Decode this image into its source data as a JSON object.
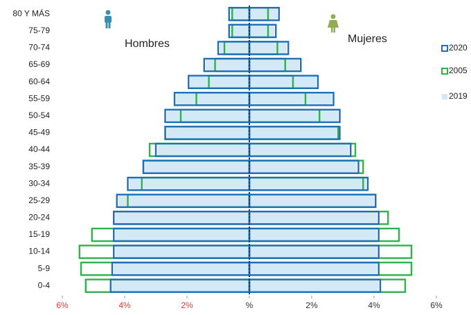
{
  "chart_data": {
    "type": "pyramid",
    "men_label": "Hombres",
    "women_label": "Mujeres",
    "categories": [
      "80 Y MÁS",
      "75-79",
      "70-74",
      "65-69",
      "60-64",
      "55-59",
      "50-54",
      "45-49",
      "40-44",
      "35-39",
      "30-34",
      "25-29",
      "20-24",
      "15-19",
      "10-14",
      "5-9",
      "0-4"
    ],
    "series": [
      {
        "name": "2020",
        "color": "#1f6fb8",
        "style": "outline",
        "men": [
          -0.65,
          -0.65,
          -1.0,
          -1.45,
          -1.95,
          -2.4,
          -2.7,
          -2.7,
          -3.0,
          -3.4,
          -3.9,
          -4.25,
          -4.35,
          -4.35,
          -4.35,
          -4.4,
          -4.45
        ],
        "women": [
          0.95,
          0.85,
          1.25,
          1.65,
          2.2,
          2.7,
          2.9,
          2.9,
          3.25,
          3.5,
          3.8,
          4.05,
          4.15,
          4.15,
          4.15,
          4.15,
          4.2
        ]
      },
      {
        "name": "2005",
        "color": "#2db34a",
        "style": "outline",
        "men": [
          -0.55,
          -0.55,
          -0.8,
          -1.1,
          -1.3,
          -1.7,
          -2.2,
          -2.7,
          -3.2,
          -3.4,
          -3.45,
          -3.9,
          -4.35,
          -5.05,
          -5.45,
          -5.4,
          -5.25
        ],
        "women": [
          0.6,
          0.6,
          0.9,
          1.15,
          1.4,
          1.8,
          2.25,
          2.85,
          3.4,
          3.65,
          3.65,
          4.05,
          4.45,
          4.8,
          5.2,
          5.2,
          5.0
        ]
      },
      {
        "name": "2019",
        "color": "#d3e9f6",
        "style": "fill",
        "men": [
          -0.6,
          -0.6,
          -0.95,
          -1.4,
          -1.9,
          -2.35,
          -2.65,
          -2.65,
          -2.95,
          -3.35,
          -3.85,
          -4.2,
          -4.3,
          -4.3,
          -4.3,
          -4.35,
          -4.4
        ],
        "women": [
          0.9,
          0.8,
          1.2,
          1.6,
          2.15,
          2.65,
          2.85,
          2.85,
          3.2,
          3.45,
          3.75,
          4.0,
          4.1,
          4.1,
          4.1,
          4.1,
          4.15
        ]
      }
    ],
    "xlim": [
      -6,
      6
    ],
    "xticks": [
      {
        "value": -6,
        "label": "6%"
      },
      {
        "value": -4,
        "label": "4%"
      },
      {
        "value": -2,
        "label": "2%"
      },
      {
        "value": 0,
        "label": "%"
      },
      {
        "value": 2,
        "label": "2%"
      },
      {
        "value": 4,
        "label": "4%"
      },
      {
        "value": 6,
        "label": "6%"
      }
    ],
    "negative_tick_color": "#e8392f",
    "tick_color": "#333333"
  }
}
